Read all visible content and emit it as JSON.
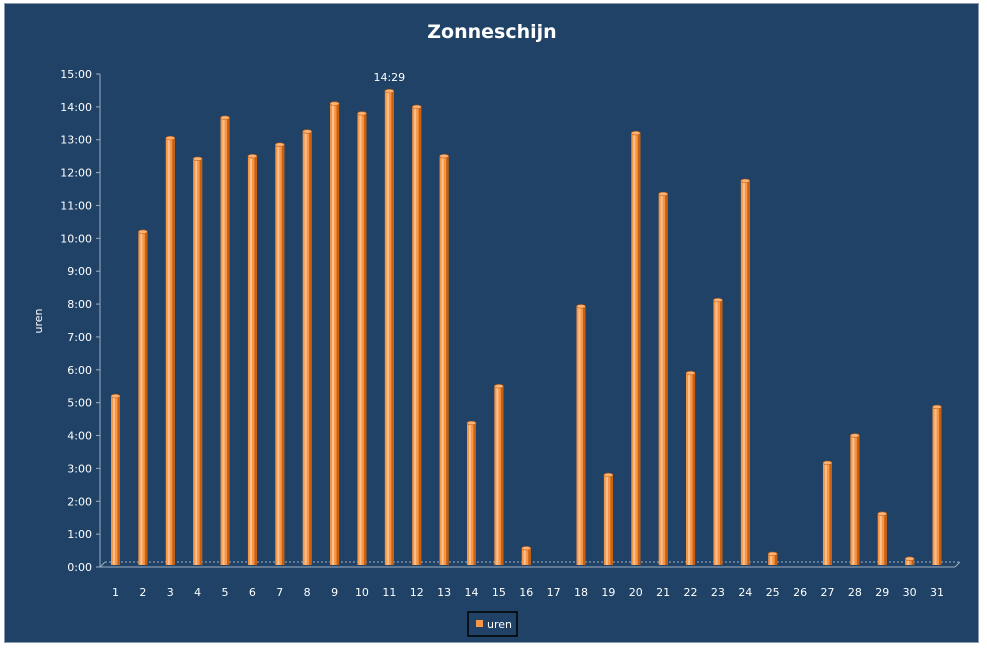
{
  "chart_data": {
    "type": "bar",
    "title": "Zonneschijn",
    "xlabel": "",
    "ylabel": "uren",
    "categories": [
      "1",
      "2",
      "3",
      "4",
      "5",
      "6",
      "7",
      "8",
      "9",
      "10",
      "11",
      "12",
      "13",
      "14",
      "15",
      "16",
      "17",
      "18",
      "19",
      "20",
      "21",
      "22",
      "23",
      "24",
      "25",
      "26",
      "27",
      "28",
      "29",
      "30",
      "31"
    ],
    "series": [
      {
        "name": "uren",
        "color": "#f79646",
        "values": [
          5.2,
          10.2,
          13.05,
          12.42,
          13.67,
          12.5,
          12.85,
          13.25,
          14.1,
          13.8,
          14.48,
          14.0,
          12.5,
          4.38,
          5.5,
          0.57,
          0,
          7.93,
          2.8,
          13.2,
          11.35,
          5.9,
          8.12,
          11.75,
          0.4,
          0,
          3.17,
          4.0,
          1.62,
          0.25,
          4.87
        ]
      }
    ],
    "yticks": [
      "0:00",
      "1:00",
      "2:00",
      "3:00",
      "4:00",
      "5:00",
      "6:00",
      "7:00",
      "8:00",
      "9:00",
      "10:00",
      "11:00",
      "12:00",
      "13:00",
      "14:00",
      "15:00"
    ],
    "ylim": [
      0,
      15
    ],
    "annotations": [
      {
        "category": "11",
        "text": "14:29"
      }
    ],
    "legend": {
      "position": "bottom",
      "entries": [
        "uren"
      ]
    },
    "grid": false,
    "colors": {
      "background": "#1f4266",
      "bar": "#f79646",
      "bar_dark": "#c8600f",
      "bar_light": "#fcc191",
      "text": "#ffffff"
    }
  }
}
